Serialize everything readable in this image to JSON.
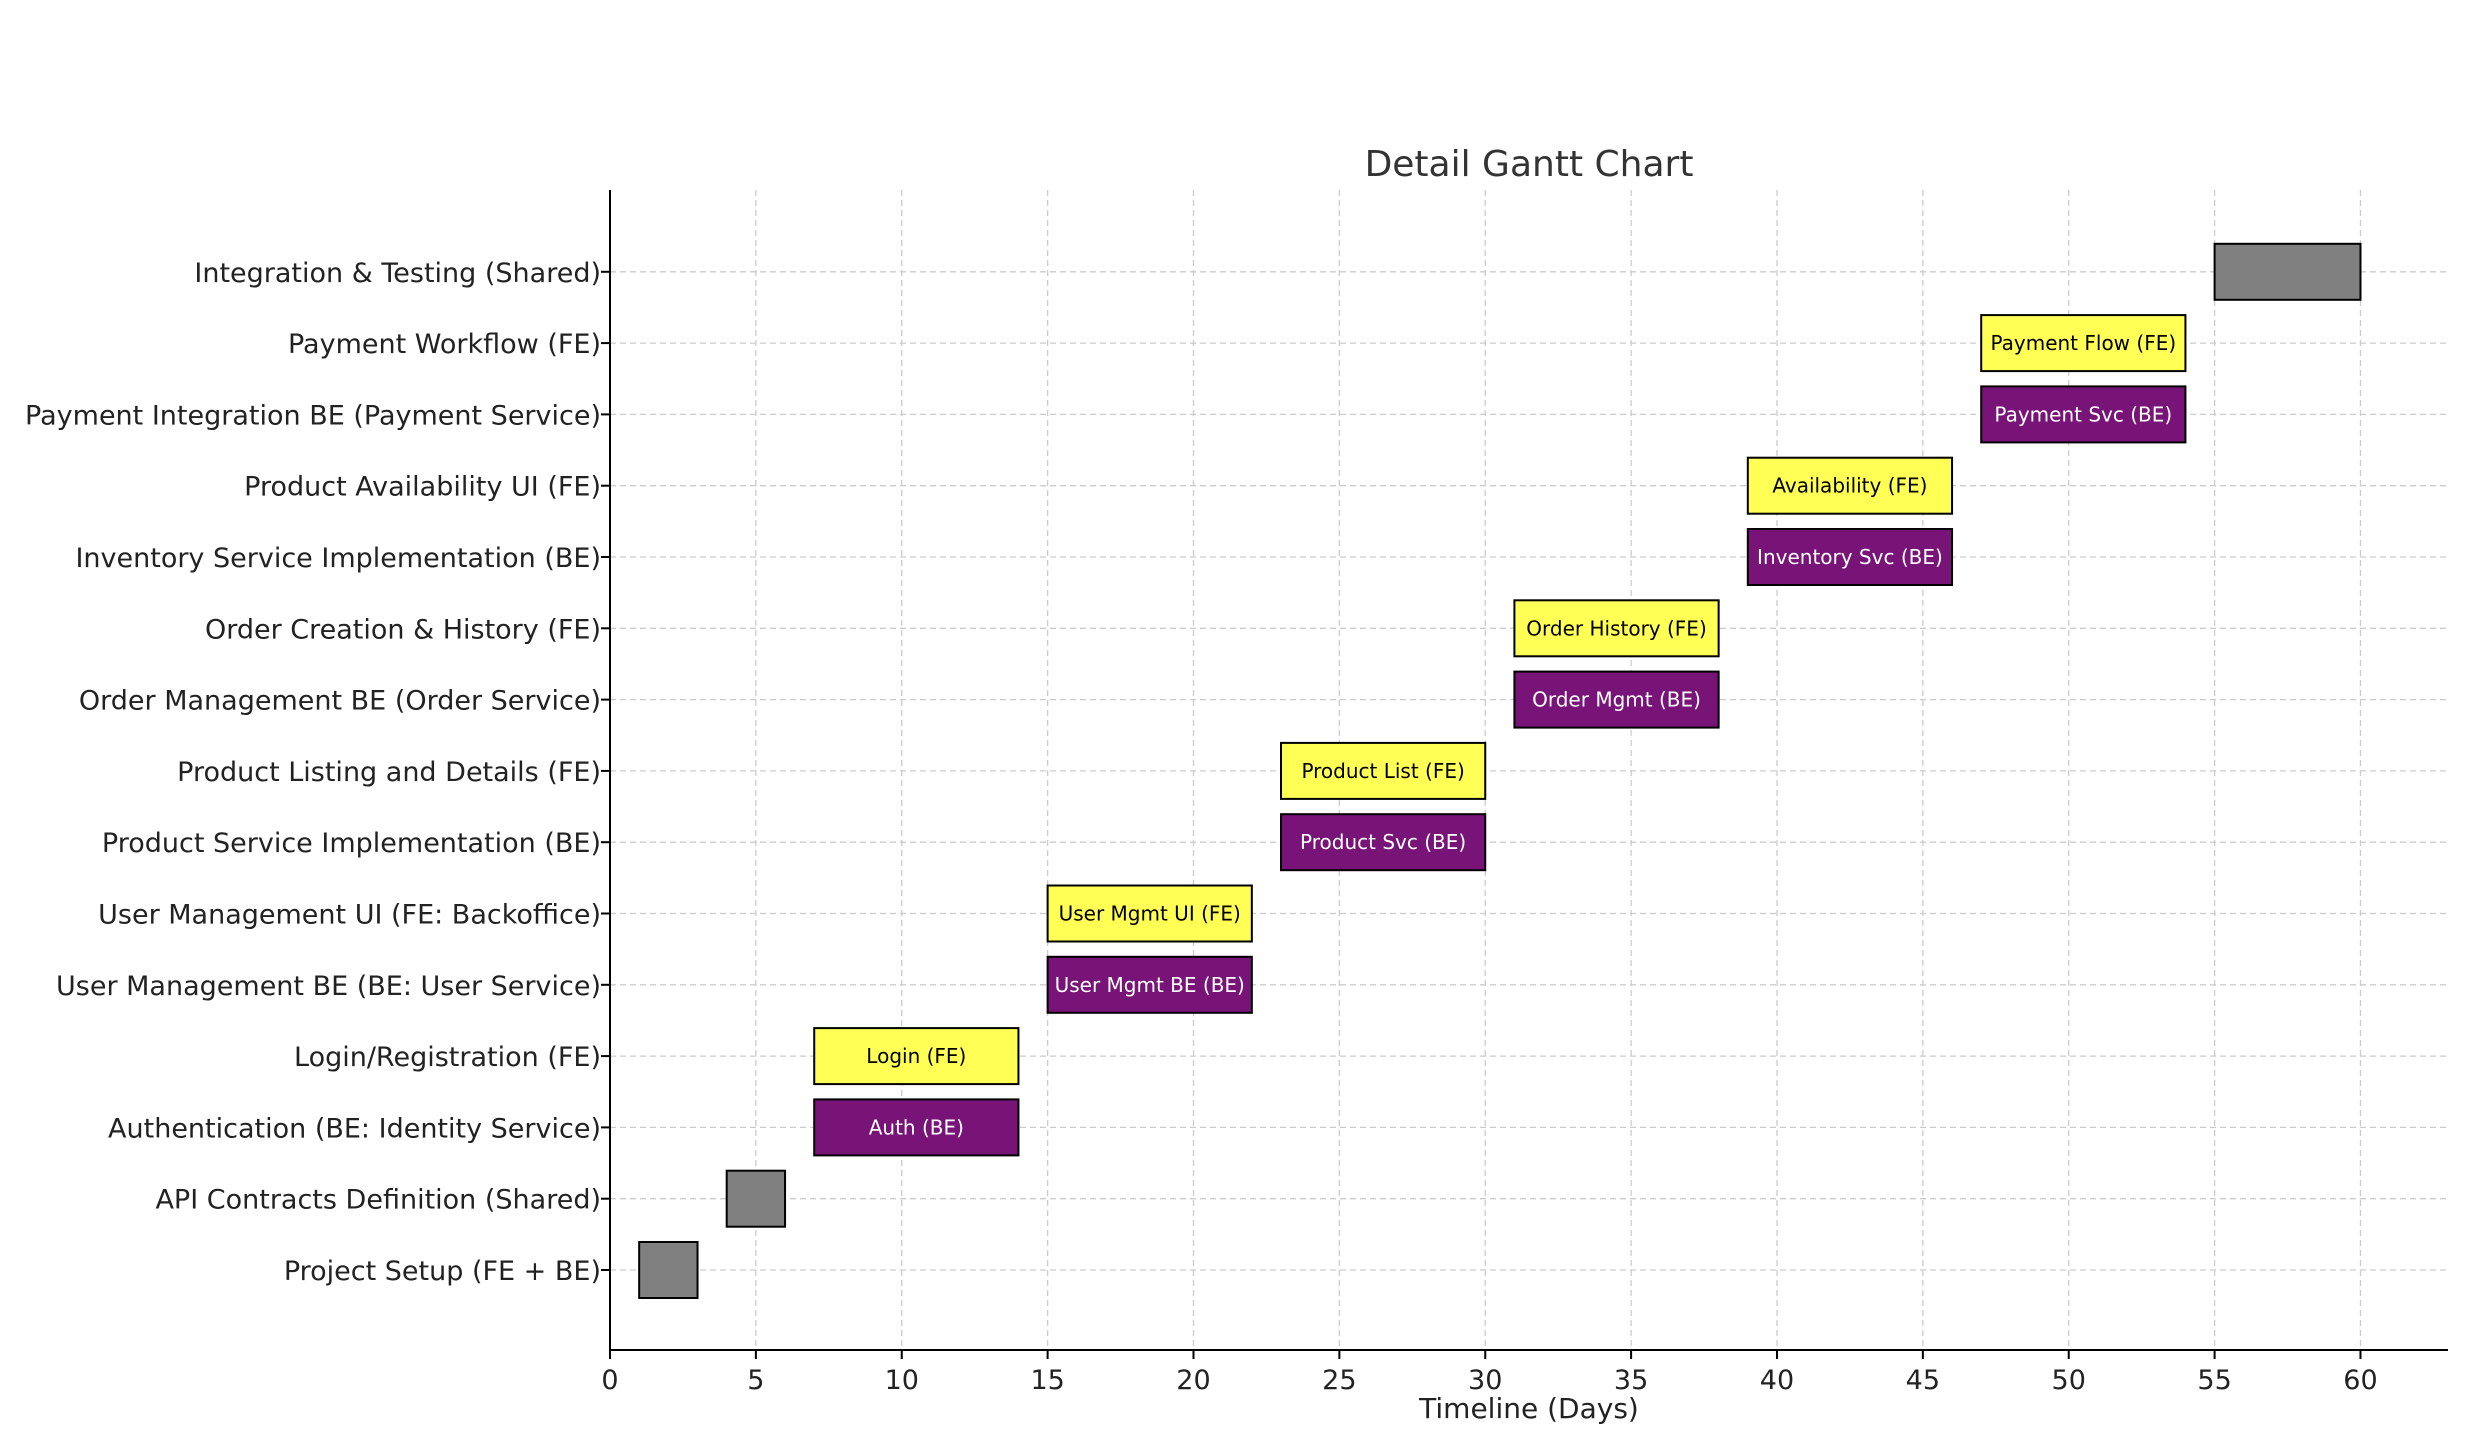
{
  "chart_data": {
    "type": "bar",
    "orientation": "horizontal",
    "title": "Detail Gantt Chart",
    "xlabel": "Timeline (Days)",
    "ylabel": "",
    "xlim": [
      0,
      63
    ],
    "xticks": [
      0,
      5,
      10,
      15,
      20,
      25,
      30,
      35,
      40,
      45,
      50,
      55,
      60
    ],
    "grid": true,
    "colors": {
      "FE": "#ffff55",
      "BE": "#781478",
      "Shared": "#808080"
    },
    "categories": [
      "Project Setup (FE + BE)",
      "API Contracts Definition (Shared)",
      "Authentication (BE: Identity Service)",
      "Login/Registration (FE)",
      "User Management BE (BE: User Service)",
      "User Management UI (FE: Backoffice)",
      "Product Service Implementation (BE)",
      "Product Listing and Details (FE)",
      "Order Management BE (Order Service)",
      "Order Creation & History (FE)",
      "Inventory Service Implementation (BE)",
      "Product Availability UI (FE)",
      "Payment Integration BE (Payment Service)",
      "Payment Workflow (FE)",
      "Integration & Testing (Shared)"
    ],
    "tasks": [
      {
        "start": 1,
        "end": 3,
        "kind": "Shared",
        "label": ""
      },
      {
        "start": 4,
        "end": 6,
        "kind": "Shared",
        "label": ""
      },
      {
        "start": 7,
        "end": 14,
        "kind": "BE",
        "label": "Auth (BE)"
      },
      {
        "start": 7,
        "end": 14,
        "kind": "FE",
        "label": "Login (FE)"
      },
      {
        "start": 15,
        "end": 22,
        "kind": "BE",
        "label": "User Mgmt BE (BE)"
      },
      {
        "start": 15,
        "end": 22,
        "kind": "FE",
        "label": "User Mgmt UI (FE)"
      },
      {
        "start": 23,
        "end": 30,
        "kind": "BE",
        "label": "Product Svc (BE)"
      },
      {
        "start": 23,
        "end": 30,
        "kind": "FE",
        "label": "Product List (FE)"
      },
      {
        "start": 31,
        "end": 38,
        "kind": "BE",
        "label": "Order Mgmt (BE)"
      },
      {
        "start": 31,
        "end": 38,
        "kind": "FE",
        "label": "Order History (FE)"
      },
      {
        "start": 39,
        "end": 46,
        "kind": "BE",
        "label": "Inventory Svc (BE)"
      },
      {
        "start": 39,
        "end": 46,
        "kind": "FE",
        "label": "Availability (FE)"
      },
      {
        "start": 47,
        "end": 54,
        "kind": "BE",
        "label": "Payment Svc (BE)"
      },
      {
        "start": 47,
        "end": 54,
        "kind": "FE",
        "label": "Payment Flow (FE)"
      },
      {
        "start": 55,
        "end": 60,
        "kind": "Shared",
        "label": ""
      }
    ]
  }
}
